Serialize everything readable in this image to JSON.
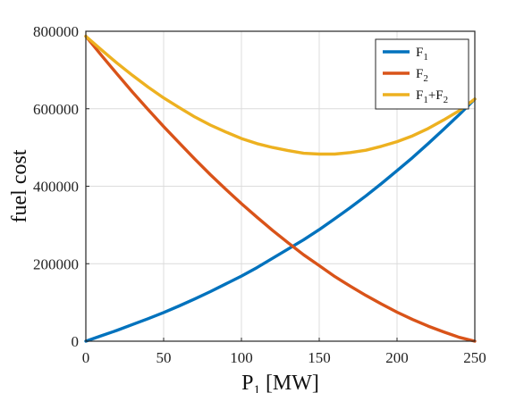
{
  "chart_data": {
    "type": "line",
    "title": "",
    "xlabel": {
      "main": "P",
      "sub": "1",
      "rest": " [MW]"
    },
    "ylabel": "fuel cost",
    "xlim": [
      0,
      250
    ],
    "ylim": [
      0,
      800000
    ],
    "xticks": [
      0,
      50,
      100,
      150,
      200,
      250
    ],
    "yticks": [
      0,
      200000,
      400000,
      600000,
      800000
    ],
    "grid": true,
    "legend_position": "top-right",
    "series": [
      {
        "name": "F₁",
        "color": "#0072BD",
        "x": [
          0,
          10,
          20,
          30,
          40,
          50,
          60,
          70,
          80,
          90,
          100,
          110,
          120,
          130,
          140,
          150,
          160,
          170,
          180,
          190,
          200,
          210,
          220,
          230,
          240,
          250
        ],
        "y": [
          0,
          14000,
          28000,
          43000,
          58000,
          74000,
          91000,
          109000,
          128000,
          148000,
          168000,
          190000,
          214000,
          238000,
          262000,
          288000,
          316000,
          345000,
          375000,
          407000,
          440000,
          474000,
          510000,
          547000,
          585000,
          625000
        ]
      },
      {
        "name": "F₂",
        "color": "#D95319",
        "x": [
          0,
          10,
          20,
          30,
          40,
          50,
          60,
          70,
          80,
          90,
          100,
          110,
          120,
          130,
          140,
          150,
          160,
          170,
          180,
          190,
          200,
          210,
          220,
          230,
          240,
          250
        ],
        "y": [
          787000,
          738000,
          690000,
          643000,
          598000,
          554000,
          512000,
          470000,
          430000,
          392000,
          355000,
          320000,
          286000,
          254000,
          223000,
          195000,
          167000,
          142000,
          118000,
          96000,
          75000,
          56000,
          39000,
          24000,
          10000,
          0
        ]
      },
      {
        "name": "F₁+F₂",
        "color": "#EDB120",
        "x": [
          0,
          10,
          20,
          30,
          40,
          50,
          60,
          70,
          80,
          90,
          100,
          110,
          120,
          130,
          140,
          150,
          160,
          170,
          180,
          190,
          200,
          210,
          220,
          230,
          240,
          250
        ],
        "y": [
          787000,
          752000,
          718000,
          686000,
          656000,
          628000,
          603000,
          579000,
          558000,
          540000,
          523000,
          510000,
          500000,
          492000,
          485000,
          483000,
          483000,
          487000,
          493000,
          503000,
          515000,
          530000,
          549000,
          571000,
          595000,
          625000
        ]
      }
    ],
    "legend": [
      {
        "main": "F",
        "sub": "1",
        "rest": "",
        "sub2": ""
      },
      {
        "main": "F",
        "sub": "2",
        "rest": "",
        "sub2": ""
      },
      {
        "main": "F",
        "sub": "1",
        "rest": "+F",
        "sub2": "2"
      }
    ]
  }
}
